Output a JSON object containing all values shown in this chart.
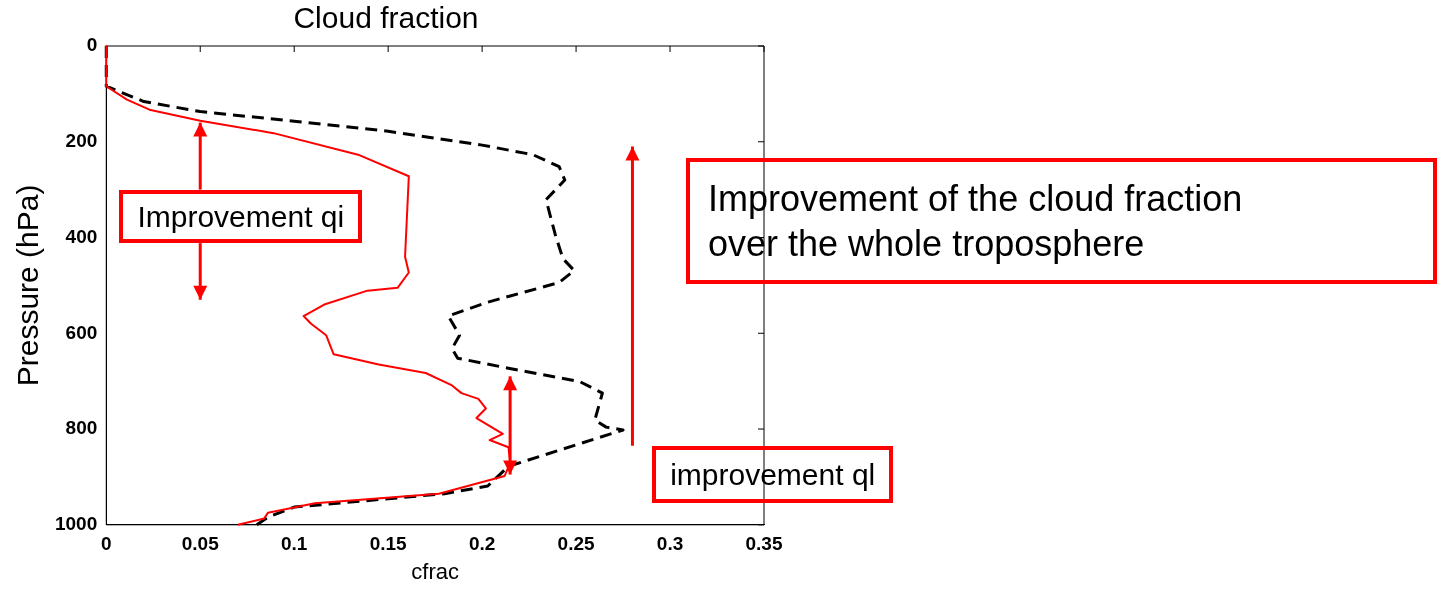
{
  "chart_data": {
    "type": "line",
    "title": "Cloud fraction",
    "xlabel": "cfrac",
    "ylabel": "Pressure (hPa)",
    "xlim": [
      0,
      0.35
    ],
    "xticks": [
      0,
      0.05,
      0.1,
      0.15,
      0.2,
      0.25,
      0.3,
      0.35
    ],
    "ylim": [
      1000,
      0
    ],
    "yticks": [
      0,
      200,
      400,
      600,
      800,
      1000
    ],
    "grid": false,
    "legend": false,
    "marker": "none",
    "annotations": [
      {
        "text": "Improvement qi",
        "x": 0.05,
        "y": 160
      },
      "Improvement of the cloud fraction over the whole troposphere",
      "improvement ql"
    ],
    "series": [
      {
        "color": "#ff0000",
        "line_style": "solid",
        "x": [
          0,
          0,
          0.011,
          0.023,
          0.05,
          0.089,
          0.134,
          0.161,
          0.159,
          0.161,
          0.155,
          0.139,
          0.116,
          0.105,
          0.109,
          0.117,
          0.121,
          0.145,
          0.17,
          0.184,
          0.189,
          0.198,
          0.202,
          0.197,
          0.211,
          0.204,
          0.214,
          0.215,
          0.212,
          0.177,
          0.111,
          0.086,
          0.084,
          0.07
        ],
        "values": [
          0,
          84,
          112,
          133,
          156,
          182,
          227,
          272,
          440,
          473,
          505,
          511,
          540,
          564,
          580,
          604,
          644,
          665,
          683,
          709,
          725,
          737,
          757,
          777,
          810,
          823,
          838,
          870,
          898,
          935,
          955,
          975,
          987,
          1000
        ]
      },
      {
        "color": "#000000",
        "line_style": "dashed",
        "x": [
          0,
          0,
          0.02,
          0.05,
          0.1,
          0.15,
          0.2,
          0.227,
          0.241,
          0.244,
          0.234,
          0.239,
          0.243,
          0.249,
          0.241,
          0.203,
          0.182,
          0.188,
          0.184,
          0.187,
          0.214,
          0.252,
          0.264,
          0.26,
          0.266,
          0.275,
          0.214,
          0.203,
          0.18,
          0.1,
          0.086,
          0.08
        ],
        "values": [
          0,
          84,
          116,
          137,
          157,
          178,
          207,
          227,
          252,
          280,
          321,
          395,
          444,
          469,
          494,
          535,
          564,
          604,
          632,
          652,
          673,
          701,
          725,
          781,
          796,
          802,
          878,
          919,
          935,
          963,
          984,
          1000
        ]
      }
    ]
  }
}
